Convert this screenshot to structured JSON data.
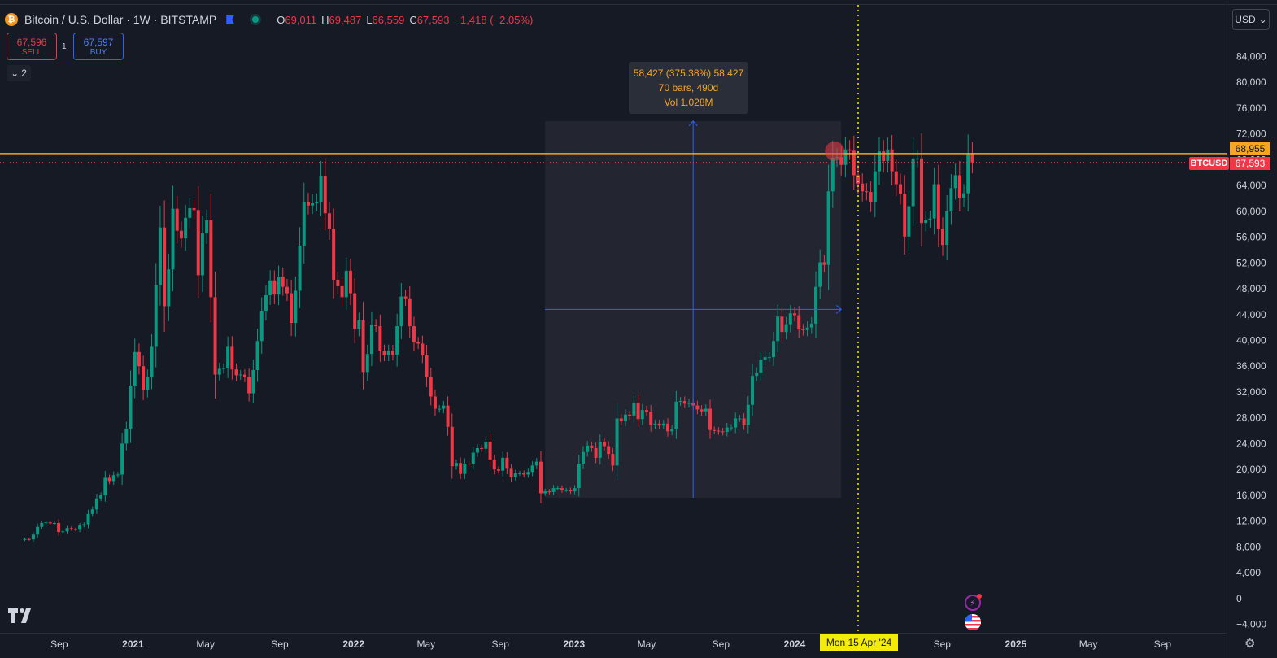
{
  "header": {
    "coin_symbol": "₿",
    "title": "Bitcoin / U.S. Dollar · 1W · BITSTAMP",
    "ohlc": {
      "o_key": "O",
      "o": "69,011",
      "h_key": "H",
      "h": "69,487",
      "l_key": "L",
      "l": "66,559",
      "c_key": "C",
      "c": "67,593",
      "change": "−1,418 (−2.05%)"
    }
  },
  "trade": {
    "sell_price": "67,596",
    "sell_label": "SELL",
    "spread": "1",
    "buy_price": "67,597",
    "buy_label": "BUY"
  },
  "collapse_label": "2",
  "currency_button": "USD",
  "measure_tooltip": {
    "line1": "58,427 (375.38%) 58,427",
    "line2": "70 bars, 490d",
    "line3": "Vol 1.028M"
  },
  "price_badges": {
    "orange_line": "68,955",
    "last_price": "67,593",
    "ticker": "BTCUSD"
  },
  "crosshair_date": "Mon 15 Apr '24",
  "colors": {
    "background": "#161a25",
    "up": "#089981",
    "down": "#f23645",
    "horizontal_line": "#f5a623",
    "measure_line": "#2962ff",
    "crosshair": "#f4eb0a"
  },
  "icons": [
    "tradingview-logo-icon",
    "lightning-icon",
    "us-flag-icon",
    "settings-gear-icon",
    "chevron-down-icon",
    "bitcoin-coin-icon",
    "bookmark-flag-icon"
  ],
  "chart_data": {
    "type": "candlestick",
    "title": "Bitcoin / U.S. Dollar · 1W · BITSTAMP",
    "interval": "1W",
    "ylim": [
      -5000,
      88000
    ],
    "y_ticks": [
      -4000,
      0,
      4000,
      8000,
      12000,
      16000,
      20000,
      24000,
      28000,
      32000,
      36000,
      40000,
      44000,
      48000,
      52000,
      56000,
      60000,
      64000,
      68000,
      72000,
      76000,
      80000,
      84000
    ],
    "y_tick_labels": [
      "−4,000",
      "0",
      "4,000",
      "8,000",
      "12,000",
      "16,000",
      "20,000",
      "24,000",
      "28,000",
      "32,000",
      "36,000",
      "40,000",
      "44,000",
      "48,000",
      "52,000",
      "56,000",
      "60,000",
      "64,000",
      "68,000",
      "72,000",
      "76,000",
      "80,000",
      "84,000"
    ],
    "x_tick_labels": [
      {
        "label": "Sep",
        "date": "2020-09-01",
        "bold": false
      },
      {
        "label": "2021",
        "date": "2021-01-01",
        "bold": true
      },
      {
        "label": "May",
        "date": "2021-05-01",
        "bold": false
      },
      {
        "label": "Sep",
        "date": "2021-09-01",
        "bold": false
      },
      {
        "label": "2022",
        "date": "2022-01-01",
        "bold": true
      },
      {
        "label": "May",
        "date": "2022-05-01",
        "bold": false
      },
      {
        "label": "Sep",
        "date": "2022-09-01",
        "bold": false
      },
      {
        "label": "2023",
        "date": "2023-01-01",
        "bold": true
      },
      {
        "label": "May",
        "date": "2023-05-01",
        "bold": false
      },
      {
        "label": "Sep",
        "date": "2023-09-01",
        "bold": false
      },
      {
        "label": "2024",
        "date": "2024-01-01",
        "bold": true
      },
      {
        "label": "Sep",
        "date": "2024-09-01",
        "bold": false
      },
      {
        "label": "2025",
        "date": "2025-01-01",
        "bold": true
      },
      {
        "label": "May",
        "date": "2025-05-01",
        "bold": false
      },
      {
        "label": "Sep",
        "date": "2025-09-01",
        "bold": false
      }
    ],
    "weekly_close": [
      [
        "2020-06-29",
        9100
      ],
      [
        "2020-07-06",
        9200
      ],
      [
        "2020-07-13",
        9150
      ],
      [
        "2020-07-20",
        9900
      ],
      [
        "2020-07-27",
        11100
      ],
      [
        "2020-08-03",
        11700
      ],
      [
        "2020-08-10",
        11800
      ],
      [
        "2020-08-17",
        11650
      ],
      [
        "2020-08-24",
        11700
      ],
      [
        "2020-08-31",
        10300
      ],
      [
        "2020-09-07",
        10400
      ],
      [
        "2020-09-14",
        10900
      ],
      [
        "2020-09-21",
        10750
      ],
      [
        "2020-09-28",
        10650
      ],
      [
        "2020-10-05",
        11300
      ],
      [
        "2020-10-12",
        11500
      ],
      [
        "2020-10-19",
        13100
      ],
      [
        "2020-10-26",
        13800
      ],
      [
        "2020-11-02",
        15500
      ],
      [
        "2020-11-09",
        16000
      ],
      [
        "2020-11-16",
        18700
      ],
      [
        "2020-11-23",
        18200
      ],
      [
        "2020-11-30",
        19100
      ],
      [
        "2020-12-07",
        19200
      ],
      [
        "2020-12-14",
        24000
      ],
      [
        "2020-12-21",
        26300
      ],
      [
        "2020-12-28",
        33000
      ],
      [
        "2021-01-04",
        38200
      ],
      [
        "2021-01-11",
        36000
      ],
      [
        "2021-01-18",
        32300
      ],
      [
        "2021-01-25",
        34300
      ],
      [
        "2021-02-01",
        39000
      ],
      [
        "2021-02-08",
        48600
      ],
      [
        "2021-02-15",
        57500
      ],
      [
        "2021-02-22",
        45300
      ],
      [
        "2021-03-01",
        51000
      ],
      [
        "2021-03-08",
        60400
      ],
      [
        "2021-03-15",
        57000
      ],
      [
        "2021-03-22",
        55800
      ],
      [
        "2021-03-29",
        59000
      ],
      [
        "2021-04-05",
        60500
      ],
      [
        "2021-04-12",
        60200
      ],
      [
        "2021-04-19",
        50100
      ],
      [
        "2021-04-26",
        56600
      ],
      [
        "2021-05-03",
        58600
      ],
      [
        "2021-05-10",
        46700
      ],
      [
        "2021-05-17",
        34700
      ],
      [
        "2021-05-24",
        35600
      ],
      [
        "2021-05-31",
        35700
      ],
      [
        "2021-06-07",
        39000
      ],
      [
        "2021-06-14",
        35500
      ],
      [
        "2021-06-21",
        34600
      ],
      [
        "2021-06-28",
        34700
      ],
      [
        "2021-07-05",
        34300
      ],
      [
        "2021-07-12",
        31800
      ],
      [
        "2021-07-19",
        35400
      ],
      [
        "2021-07-26",
        39900
      ],
      [
        "2021-08-02",
        44600
      ],
      [
        "2021-08-09",
        47000
      ],
      [
        "2021-08-16",
        49300
      ],
      [
        "2021-08-23",
        47100
      ],
      [
        "2021-08-30",
        49900
      ],
      [
        "2021-09-06",
        48300
      ],
      [
        "2021-09-13",
        47300
      ],
      [
        "2021-09-20",
        42700
      ],
      [
        "2021-09-27",
        47700
      ],
      [
        "2021-10-04",
        54700
      ],
      [
        "2021-10-11",
        61500
      ],
      [
        "2021-10-18",
        60900
      ],
      [
        "2021-10-25",
        61300
      ],
      [
        "2021-11-01",
        61500
      ],
      [
        "2021-11-08",
        65500
      ],
      [
        "2021-11-15",
        59700
      ],
      [
        "2021-11-22",
        57300
      ],
      [
        "2021-11-29",
        49400
      ],
      [
        "2021-12-06",
        48400
      ],
      [
        "2021-12-13",
        46700
      ],
      [
        "2021-12-20",
        50800
      ],
      [
        "2021-12-27",
        47300
      ],
      [
        "2022-01-03",
        41800
      ],
      [
        "2022-01-10",
        43100
      ],
      [
        "2022-01-17",
        35100
      ],
      [
        "2022-01-24",
        37900
      ],
      [
        "2022-01-31",
        42400
      ],
      [
        "2022-02-07",
        42200
      ],
      [
        "2022-02-14",
        38400
      ],
      [
        "2022-02-21",
        37700
      ],
      [
        "2022-02-28",
        38400
      ],
      [
        "2022-03-07",
        37800
      ],
      [
        "2022-03-14",
        42200
      ],
      [
        "2022-03-21",
        46800
      ],
      [
        "2022-03-28",
        46400
      ],
      [
        "2022-04-04",
        42200
      ],
      [
        "2022-04-11",
        39700
      ],
      [
        "2022-04-18",
        39500
      ],
      [
        "2022-04-25",
        37700
      ],
      [
        "2022-05-02",
        34300
      ],
      [
        "2022-05-09",
        31300
      ],
      [
        "2022-05-16",
        29400
      ],
      [
        "2022-05-23",
        29400
      ],
      [
        "2022-05-30",
        29900
      ],
      [
        "2022-06-06",
        26600
      ],
      [
        "2022-06-13",
        20500
      ],
      [
        "2022-06-20",
        21000
      ],
      [
        "2022-06-27",
        19300
      ],
      [
        "2022-07-04",
        20900
      ],
      [
        "2022-07-11",
        20800
      ],
      [
        "2022-07-18",
        22600
      ],
      [
        "2022-07-25",
        23300
      ],
      [
        "2022-08-01",
        23200
      ],
      [
        "2022-08-08",
        24300
      ],
      [
        "2022-08-15",
        21500
      ],
      [
        "2022-08-22",
        20000
      ],
      [
        "2022-08-29",
        19800
      ],
      [
        "2022-09-05",
        21800
      ],
      [
        "2022-09-12",
        20100
      ],
      [
        "2022-09-19",
        18800
      ],
      [
        "2022-09-26",
        19400
      ],
      [
        "2022-10-03",
        19400
      ],
      [
        "2022-10-10",
        19200
      ],
      [
        "2022-10-17",
        19600
      ],
      [
        "2022-10-24",
        20600
      ],
      [
        "2022-10-31",
        21200
      ],
      [
        "2022-11-07",
        16300
      ],
      [
        "2022-11-14",
        16600
      ],
      [
        "2022-11-21",
        16500
      ],
      [
        "2022-11-28",
        17100
      ],
      [
        "2022-12-05",
        17100
      ],
      [
        "2022-12-12",
        16800
      ],
      [
        "2022-12-19",
        16800
      ],
      [
        "2022-12-26",
        16600
      ],
      [
        "2023-01-02",
        17100
      ],
      [
        "2023-01-09",
        20900
      ],
      [
        "2023-01-16",
        22700
      ],
      [
        "2023-01-23",
        23700
      ],
      [
        "2023-01-30",
        23300
      ],
      [
        "2023-02-06",
        21800
      ],
      [
        "2023-02-13",
        24300
      ],
      [
        "2023-02-20",
        23600
      ],
      [
        "2023-02-27",
        22400
      ],
      [
        "2023-03-06",
        20600
      ],
      [
        "2023-03-13",
        27900
      ],
      [
        "2023-03-20",
        27500
      ],
      [
        "2023-03-27",
        28500
      ],
      [
        "2023-04-03",
        28300
      ],
      [
        "2023-04-10",
        30300
      ],
      [
        "2023-04-17",
        27800
      ],
      [
        "2023-04-24",
        29200
      ],
      [
        "2023-05-01",
        28900
      ],
      [
        "2023-05-08",
        26900
      ],
      [
        "2023-05-15",
        27100
      ],
      [
        "2023-05-22",
        26800
      ],
      [
        "2023-05-29",
        27100
      ],
      [
        "2023-06-05",
        25900
      ],
      [
        "2023-06-12",
        26300
      ],
      [
        "2023-06-19",
        30500
      ],
      [
        "2023-06-26",
        30600
      ],
      [
        "2023-07-03",
        30200
      ],
      [
        "2023-07-10",
        30300
      ],
      [
        "2023-07-17",
        29900
      ],
      [
        "2023-07-24",
        29300
      ],
      [
        "2023-07-31",
        29000
      ],
      [
        "2023-08-07",
        29400
      ],
      [
        "2023-08-14",
        26100
      ],
      [
        "2023-08-21",
        26000
      ],
      [
        "2023-08-28",
        25900
      ],
      [
        "2023-09-04",
        25800
      ],
      [
        "2023-09-11",
        26500
      ],
      [
        "2023-09-18",
        26500
      ],
      [
        "2023-09-25",
        27900
      ],
      [
        "2023-10-02",
        27900
      ],
      [
        "2023-10-09",
        26900
      ],
      [
        "2023-10-16",
        30000
      ],
      [
        "2023-10-23",
        34500
      ],
      [
        "2023-10-30",
        35000
      ],
      [
        "2023-11-06",
        37000
      ],
      [
        "2023-11-13",
        37400
      ],
      [
        "2023-11-20",
        37400
      ],
      [
        "2023-11-27",
        39900
      ],
      [
        "2023-12-04",
        43700
      ],
      [
        "2023-12-11",
        41300
      ],
      [
        "2023-12-18",
        42500
      ],
      [
        "2023-12-25",
        44200
      ],
      [
        "2024-01-01",
        43900
      ],
      [
        "2024-01-08",
        41700
      ],
      [
        "2024-01-15",
        41600
      ],
      [
        "2024-01-22",
        42000
      ],
      [
        "2024-01-29",
        42600
      ],
      [
        "2024-02-05",
        48300
      ],
      [
        "2024-02-12",
        52100
      ],
      [
        "2024-02-19",
        51700
      ],
      [
        "2024-02-26",
        63100
      ],
      [
        "2024-03-04",
        68300
      ],
      [
        "2024-03-11",
        68400
      ],
      [
        "2024-03-18",
        67200
      ],
      [
        "2024-03-25",
        69600
      ],
      [
        "2024-04-01",
        69400
      ],
      [
        "2024-04-08",
        65600
      ],
      [
        "2024-04-15",
        64300
      ],
      [
        "2024-04-22",
        63100
      ],
      [
        "2024-04-29",
        63000
      ],
      [
        "2024-05-06",
        61500
      ],
      [
        "2024-05-13",
        66200
      ],
      [
        "2024-05-20",
        69300
      ],
      [
        "2024-05-27",
        67800
      ],
      [
        "2024-06-03",
        69600
      ],
      [
        "2024-06-10",
        66200
      ],
      [
        "2024-06-17",
        64200
      ],
      [
        "2024-06-24",
        62700
      ],
      [
        "2024-07-01",
        56100
      ],
      [
        "2024-07-08",
        60800
      ],
      [
        "2024-07-15",
        68200
      ],
      [
        "2024-07-22",
        68200
      ],
      [
        "2024-07-29",
        58200
      ],
      [
        "2024-08-05",
        58700
      ],
      [
        "2024-08-12",
        58900
      ],
      [
        "2024-08-19",
        64200
      ],
      [
        "2024-08-26",
        57300
      ],
      [
        "2024-09-02",
        54800
      ],
      [
        "2024-09-09",
        60000
      ],
      [
        "2024-09-16",
        63600
      ],
      [
        "2024-09-23",
        65600
      ],
      [
        "2024-09-30",
        62100
      ],
      [
        "2024-10-07",
        62800
      ],
      [
        "2024-10-14",
        69000
      ],
      [
        "2024-10-21",
        67593
      ]
    ],
    "horizontal_line": 68955,
    "last_price": 67593,
    "measure": {
      "start_date": "2022-11-14",
      "end_date": "2024-03-18",
      "low": 15600,
      "high": 74000
    },
    "crosshair": {
      "date": "2024-04-15"
    }
  }
}
